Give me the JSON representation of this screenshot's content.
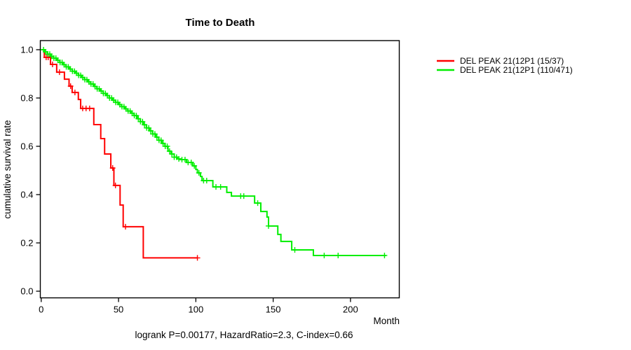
{
  "figure": {
    "background": "#ffffff",
    "frame_color": "#000000"
  },
  "chart_data": {
    "type": "line",
    "subtype": "kaplan-meier-step-curve",
    "title": "Time to Death",
    "xlabel": "Month",
    "ylabel": "cumulative survival rate",
    "annotation": "logrank P=0.00177, HazardRatio=2.3, C-index=0.66",
    "xlim": [
      0,
      231
    ],
    "ylim": [
      0,
      1.04
    ],
    "grid": false,
    "legend_position": "right-outside-top",
    "x_ticks": [
      {
        "v": 0,
        "label": "0"
      },
      {
        "v": 50,
        "label": "50"
      },
      {
        "v": 100,
        "label": "100"
      },
      {
        "v": 150,
        "label": "150"
      },
      {
        "v": 200,
        "label": "200"
      }
    ],
    "y_ticks": [
      {
        "v": 0.0,
        "label": "0.0"
      },
      {
        "v": 0.2,
        "label": "0.2"
      },
      {
        "v": 0.4,
        "label": "0.4"
      },
      {
        "v": 0.6,
        "label": "0.6"
      },
      {
        "v": 0.8,
        "label": "0.8"
      },
      {
        "v": 1.0,
        "label": "1.0"
      }
    ],
    "series": [
      {
        "key": "red",
        "name": "DEL PEAK 21(12P1 (15/37)",
        "color": "#ff0000",
        "end_month": 101,
        "steps": [
          [
            0,
            1.0
          ],
          [
            2,
            0.968
          ],
          [
            6,
            0.939
          ],
          [
            10,
            0.907
          ],
          [
            15,
            0.878
          ],
          [
            18,
            0.849
          ],
          [
            20,
            0.823
          ],
          [
            24,
            0.794
          ],
          [
            25.5,
            0.757
          ],
          [
            34,
            0.69
          ],
          [
            38.5,
            0.632
          ],
          [
            41,
            0.568
          ],
          [
            45,
            0.51
          ],
          [
            47,
            0.438
          ],
          [
            51,
            0.357
          ],
          [
            53,
            0.267
          ],
          [
            66,
            0.138
          ]
        ],
        "censor_months": [
          3.2,
          4.5,
          7.3,
          11.8,
          19,
          21.8,
          26.8,
          29,
          31.3,
          46.2,
          48,
          54.5,
          101
        ]
      },
      {
        "key": "green",
        "name": "DEL PEAK 21(12P1 (110/471)",
        "color": "#00ee00",
        "end_month": 223,
        "steps": [
          [
            0,
            1.0
          ],
          [
            2,
            0.991
          ],
          [
            4,
            0.982
          ],
          [
            6,
            0.973
          ],
          [
            8,
            0.965
          ],
          [
            10,
            0.956
          ],
          [
            12,
            0.947
          ],
          [
            14,
            0.938
          ],
          [
            16,
            0.929
          ],
          [
            18,
            0.92
          ],
          [
            20,
            0.911
          ],
          [
            22,
            0.903
          ],
          [
            24,
            0.894
          ],
          [
            26,
            0.885
          ],
          [
            28,
            0.876
          ],
          [
            30,
            0.867
          ],
          [
            32,
            0.858
          ],
          [
            34,
            0.848
          ],
          [
            36,
            0.838
          ],
          [
            38,
            0.829
          ],
          [
            40,
            0.819
          ],
          [
            42,
            0.81
          ],
          [
            44,
            0.8
          ],
          [
            46,
            0.791
          ],
          [
            48,
            0.782
          ],
          [
            50,
            0.773
          ],
          [
            52,
            0.764
          ],
          [
            54,
            0.755
          ],
          [
            56,
            0.746
          ],
          [
            58,
            0.737
          ],
          [
            60,
            0.727
          ],
          [
            62,
            0.714
          ],
          [
            64,
            0.702
          ],
          [
            66,
            0.689
          ],
          [
            68,
            0.676
          ],
          [
            70,
            0.664
          ],
          [
            72,
            0.651
          ],
          [
            74,
            0.638
          ],
          [
            76,
            0.625
          ],
          [
            78,
            0.612
          ],
          [
            80,
            0.6
          ],
          [
            82,
            0.58
          ],
          [
            84,
            0.568
          ],
          [
            86,
            0.555
          ],
          [
            88,
            0.548
          ],
          [
            90,
            0.545
          ],
          [
            94,
            0.533
          ],
          [
            98,
            0.519
          ],
          [
            100,
            0.504
          ],
          [
            101,
            0.49
          ],
          [
            103,
            0.475
          ],
          [
            104,
            0.458
          ],
          [
            111,
            0.432
          ],
          [
            120,
            0.409
          ],
          [
            123,
            0.394
          ],
          [
            138,
            0.365
          ],
          [
            142,
            0.33
          ],
          [
            146,
            0.307
          ],
          [
            147,
            0.27
          ],
          [
            153,
            0.235
          ],
          [
            155,
            0.206
          ],
          [
            162,
            0.171
          ],
          [
            176,
            0.148
          ]
        ],
        "censor_months": [
          1.5,
          2.8,
          4.2,
          5.5,
          6.8,
          8.2,
          9.5,
          10.8,
          12.2,
          13.5,
          14.8,
          16.2,
          17.5,
          18.8,
          20.2,
          21.5,
          22.8,
          24.2,
          25.5,
          26.8,
          28.2,
          29.5,
          30.8,
          32.2,
          33.5,
          34.8,
          36.2,
          37.5,
          38.8,
          40.2,
          41.5,
          42.8,
          44.2,
          45.5,
          46.8,
          48.2,
          49.5,
          50.8,
          52.2,
          53.5,
          54.8,
          56.2,
          57.5,
          58.8,
          60.2,
          61.5,
          62.8,
          64.2,
          65.5,
          66.8,
          68.2,
          69.5,
          70.8,
          72.2,
          73.5,
          74.8,
          76.2,
          77.5,
          78.8,
          80.2,
          81.5,
          83,
          84.5,
          86,
          87.5,
          89,
          91,
          93,
          95,
          97,
          99,
          102,
          105,
          107,
          113,
          116,
          129,
          131,
          140,
          147,
          164,
          183,
          192,
          222
        ]
      }
    ]
  }
}
